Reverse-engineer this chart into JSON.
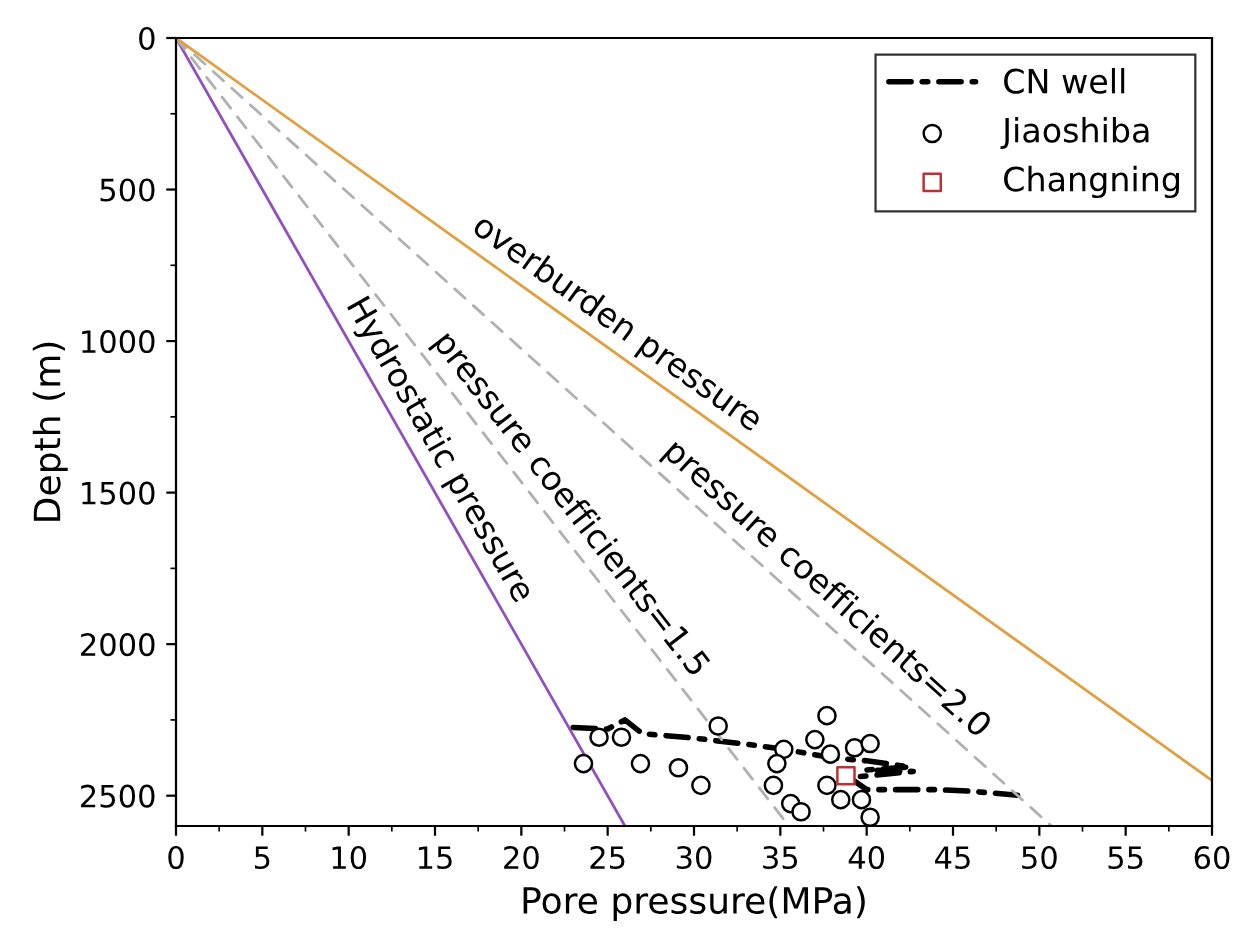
{
  "chart_data": {
    "type": "line",
    "xlabel": "Pore pressure(MPa)",
    "ylabel": "Depth (m)",
    "xlim": [
      0,
      60
    ],
    "xticks": [
      0,
      5,
      10,
      15,
      20,
      25,
      30,
      35,
      40,
      45,
      50,
      55,
      60
    ],
    "ylim": [
      2600,
      0
    ],
    "yticks": [
      0,
      500,
      1000,
      1500,
      2000,
      2500
    ],
    "grid": false,
    "legend": "top right",
    "annotations": [
      {
        "text": "Hydrostatic pressure",
        "x": 14.0,
        "y": 1400
      },
      {
        "text": "pressure coefficients=1.5",
        "x": 21.7,
        "y": 1590
      },
      {
        "text": "pressure coefficients=2.0",
        "x": 36.7,
        "y": 1880
      },
      {
        "text": "overburden pressure",
        "x": 24.7,
        "y": 1010
      }
    ],
    "series": [
      {
        "name": "CN well",
        "color": "#000000",
        "line_style": "dashdot",
        "x": [
          23,
          25,
          26,
          27,
          30,
          33,
          35,
          38,
          40,
          42.5,
          40,
          42.7,
          39,
          40,
          44,
          46,
          49
        ],
        "values": [
          2275,
          2280,
          2250,
          2295,
          2310,
          2330,
          2345,
          2375,
          2385,
          2405,
          2415,
          2420,
          2440,
          2480,
          2480,
          2485,
          2500
        ]
      },
      {
        "type": "scatter",
        "name": "Jiaoshiba",
        "color": "#000000",
        "marker": "circle",
        "x": [
          23.6,
          24.5,
          25.8,
          26.9,
          29.1,
          30.4,
          31.4,
          35.2,
          34.8,
          34.6,
          35.6,
          36.2,
          37.0,
          37.7,
          37.9,
          37.7,
          38.5,
          39.3,
          40.2,
          39.7,
          40.2
        ],
        "values": [
          2394,
          2307,
          2307,
          2394,
          2408,
          2466,
          2270,
          2347,
          2394,
          2466,
          2526,
          2553,
          2315,
          2236,
          2363,
          2466,
          2513,
          2342,
          2328,
          2513,
          2571
        ]
      },
      {
        "type": "scatter",
        "name": "Changning",
        "color": "#c03030",
        "marker": "square",
        "x": [
          38.8
        ],
        "values": [
          2434
        ]
      },
      {
        "color": "#9050c0",
        "line_style": "solid",
        "x": [
          0,
          26
        ],
        "values": [
          0,
          2600
        ]
      },
      {
        "color": "#b0b0b0",
        "line_style": "dashed",
        "x": [
          0,
          35.5
        ],
        "values": [
          0,
          2600
        ]
      },
      {
        "color": "#b0b0b0",
        "line_style": "dashed",
        "x": [
          0,
          50.7
        ],
        "values": [
          0,
          2600
        ]
      },
      {
        "color": "#e0a040",
        "line_style": "solid",
        "x": [
          0,
          60
        ],
        "values": [
          0,
          2450
        ]
      }
    ]
  }
}
